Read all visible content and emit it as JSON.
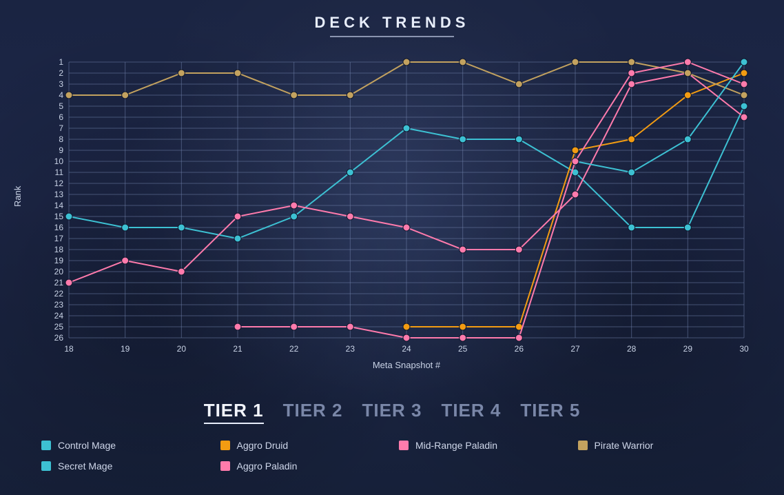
{
  "title": "DECK TRENDS",
  "chart": {
    "type": "line",
    "background_color": "transparent",
    "grid_color": "#6d7ea7",
    "text_color": "#c9d3e6",
    "title_fontsize": 22,
    "axis_fontsize": 12,
    "line_width": 2,
    "marker_radius": 5,
    "x": {
      "label": "Meta Snapshot #",
      "values": [
        18,
        19,
        20,
        21,
        22,
        23,
        24,
        25,
        26,
        27,
        28,
        29,
        30
      ],
      "min": 18,
      "max": 30
    },
    "y": {
      "label": "Rank",
      "values": [
        1,
        2,
        3,
        4,
        5,
        6,
        7,
        8,
        9,
        10,
        11,
        12,
        13,
        14,
        15,
        16,
        17,
        18,
        19,
        20,
        21,
        22,
        23,
        24,
        25,
        26
      ],
      "min": 1,
      "max": 26,
      "inverted": true
    },
    "series": [
      {
        "name": "Control Mage",
        "color": "#3dc1d3",
        "points": {
          "18": 15,
          "19": 16,
          "20": 16,
          "21": 17,
          "22": 15,
          "23": 11,
          "24": 7,
          "25": 8,
          "26": 8,
          "27": 11,
          "28": 16,
          "29": 16,
          "30": 5
        }
      },
      {
        "name": "Aggro Druid",
        "color": "#f39c12",
        "points": {
          "24": 25,
          "25": 25,
          "26": 25,
          "27": 9,
          "28": 8,
          "29": 4,
          "30": 2
        }
      },
      {
        "name": "Mid-Range Paladin",
        "color": "#ff7bac",
        "points": {
          "18": 21,
          "19": 19,
          "20": 20,
          "21": 15,
          "22": 14,
          "23": 15,
          "24": 16,
          "25": 18,
          "26": 18,
          "27": 13,
          "28": 3,
          "29": 2,
          "30": 6
        }
      },
      {
        "name": "Pirate Warrior",
        "color": "#c3a25f",
        "points": {
          "18": 4,
          "19": 4,
          "20": 2,
          "21": 2,
          "22": 4,
          "23": 4,
          "24": 1,
          "25": 1,
          "26": 3,
          "27": 1,
          "28": 1,
          "29": 2,
          "30": 4
        }
      },
      {
        "name": "Secret Mage",
        "color": "#3dc1d3",
        "points": {
          "27": 10,
          "28": 11,
          "29": 8,
          "30": 1
        }
      },
      {
        "name": "Aggro Paladin",
        "color": "#ff7bac",
        "points": {
          "21": 25,
          "22": 25,
          "23": 25,
          "24": 26,
          "25": 26,
          "26": 26,
          "27": 10,
          "28": 2,
          "29": 1,
          "30": 3
        }
      }
    ]
  },
  "tiers": {
    "items": [
      "TIER 1",
      "TIER 2",
      "TIER 3",
      "TIER 4",
      "TIER 5"
    ],
    "active_index": 0,
    "active_color": "#f2f5fc",
    "inactive_color": "#7a87a8",
    "fontsize": 26
  },
  "legend": {
    "fontsize": 14,
    "swatch_size": 14,
    "items": [
      {
        "label": "Control Mage",
        "color": "#3dc1d3"
      },
      {
        "label": "Aggro Druid",
        "color": "#f39c12"
      },
      {
        "label": "Mid-Range Paladin",
        "color": "#ff7bac"
      },
      {
        "label": "Pirate Warrior",
        "color": "#c3a25f"
      },
      {
        "label": "Secret Mage",
        "color": "#3dc1d3"
      },
      {
        "label": "Aggro Paladin",
        "color": "#ff7bac"
      }
    ]
  }
}
